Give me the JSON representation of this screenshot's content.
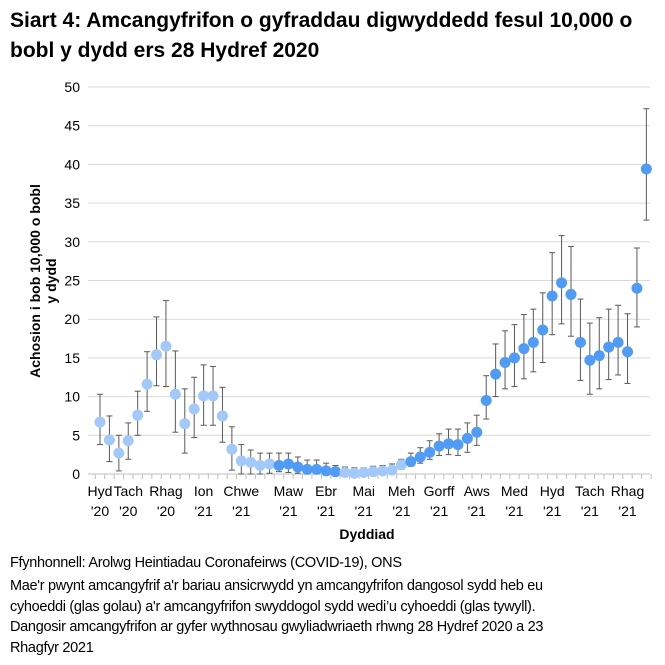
{
  "chart_data": {
    "type": "scatter",
    "title": "Siart 4: Amcangyfrifon o gyfraddau digwyddedd fesul 10,000 o bobl y dydd ers 28 Hydref 2020",
    "xlabel": "Dyddiad",
    "ylabel_lines": [
      "Achosion i bob 10,000 o bobl",
      "y dydd"
    ],
    "ylim": [
      0,
      50
    ],
    "yticks": [
      0,
      5,
      10,
      15,
      20,
      25,
      30,
      35,
      40,
      45,
      50
    ],
    "grid": "horizontal",
    "colors": {
      "unpublished": "#a3c9fa",
      "published": "#4f9bf5",
      "error_bar": "#595959",
      "grid": "#d9d9d9"
    },
    "x_tick_labels": [
      {
        "index": 0,
        "label": [
          "Hyd",
          "'20"
        ]
      },
      {
        "index": 3,
        "label": [
          "Tach",
          "'20"
        ]
      },
      {
        "index": 7,
        "label": [
          "Rhag",
          "'20"
        ]
      },
      {
        "index": 11,
        "label": [
          "Ion",
          "'21"
        ]
      },
      {
        "index": 15,
        "label": [
          "Chwe",
          "'21"
        ]
      },
      {
        "index": 20,
        "label": [
          "Maw",
          "'21"
        ]
      },
      {
        "index": 24,
        "label": [
          "Ebr",
          "'21"
        ]
      },
      {
        "index": 28,
        "label": [
          "Mai",
          "'21"
        ]
      },
      {
        "index": 32,
        "label": [
          "Meh",
          "'21"
        ]
      },
      {
        "index": 36,
        "label": [
          "Gorff",
          "'21"
        ]
      },
      {
        "index": 40,
        "label": [
          "Aws",
          "'21"
        ]
      },
      {
        "index": 44,
        "label": [
          "Med",
          "'21"
        ]
      },
      {
        "index": 48,
        "label": [
          "Hyd",
          "'21"
        ]
      },
      {
        "index": 52,
        "label": [
          "Tach",
          "'21"
        ]
      },
      {
        "index": 56,
        "label": [
          "Rhag",
          "'21"
        ]
      }
    ],
    "values": [
      6.7,
      4.4,
      2.7,
      4.3,
      7.6,
      11.6,
      15.4,
      16.5,
      10.3,
      6.5,
      8.4,
      10.1,
      10.1,
      7.5,
      3.2,
      1.7,
      1.5,
      1.1,
      1.3,
      1.1,
      1.3,
      0.9,
      0.6,
      0.6,
      0.4,
      0.3,
      0.2,
      0.1,
      0.2,
      0.3,
      0.4,
      0.5,
      1.2,
      1.6,
      2.2,
      2.8,
      3.6,
      3.9,
      3.8,
      4.6,
      5.4,
      9.5,
      12.9,
      14.4,
      15.0,
      16.2,
      17.0,
      18.6,
      23.0,
      24.7,
      23.2,
      17.0,
      14.7,
      15.3,
      16.4,
      17.0,
      15.8,
      24.0,
      39.4
    ],
    "lower": [
      3.8,
      1.6,
      0.4,
      1.9,
      5.0,
      8.1,
      11.4,
      11.3,
      5.4,
      2.7,
      4.7,
      6.3,
      6.3,
      4.1,
      0.5,
      0,
      0,
      0,
      0.1,
      0.3,
      0.2,
      0.1,
      0,
      0,
      0,
      0,
      0,
      0,
      0,
      0,
      0,
      0,
      0.6,
      1.0,
      1.4,
      1.9,
      2.4,
      2.5,
      2.4,
      2.8,
      3.7,
      7.1,
      10.0,
      11.0,
      11.3,
      12.3,
      13.2,
      14.4,
      18.0,
      19.4,
      17.8,
      12.1,
      10.3,
      11.0,
      12.2,
      12.8,
      11.7,
      19.0,
      32.8
    ],
    "upper": [
      10.3,
      7.5,
      5.0,
      6.6,
      10.7,
      15.8,
      20.3,
      22.4,
      15.9,
      11.0,
      12.5,
      14.1,
      13.9,
      11.2,
      6.1,
      3.8,
      3.1,
      2.7,
      2.7,
      2.7,
      2.7,
      2.2,
      1.8,
      1.8,
      1.4,
      1.1,
      0.9,
      0.8,
      0.8,
      1.0,
      1.1,
      1.3,
      1.9,
      2.7,
      3.4,
      4.3,
      5.2,
      5.8,
      5.8,
      6.6,
      7.6,
      12.7,
      16.8,
      18.5,
      19.3,
      20.6,
      21.3,
      23.4,
      28.6,
      30.8,
      29.4,
      22.6,
      19.5,
      20.2,
      21.3,
      21.8,
      20.7,
      29.2,
      47.2
    ],
    "published": [
      false,
      false,
      false,
      false,
      false,
      false,
      false,
      false,
      false,
      false,
      false,
      false,
      false,
      false,
      false,
      false,
      false,
      false,
      false,
      true,
      true,
      true,
      true,
      true,
      true,
      true,
      false,
      false,
      false,
      false,
      false,
      false,
      false,
      true,
      true,
      true,
      true,
      true,
      true,
      true,
      true,
      true,
      true,
      true,
      true,
      true,
      true,
      true,
      true,
      true,
      true,
      true,
      true,
      true,
      true,
      true,
      true,
      true,
      true
    ]
  },
  "footer": {
    "source": "Ffynhonnell: Arolwg Heintiadau Coronafeirws (COVID-19), ONS",
    "note_lines": [
      "Mae'r pwynt amcangyfrif a'r bariau ansicrwydd yn amcangyfrifon dangosol sydd heb eu",
      "cyhoeddi (glas golau) a'r amcangyfrifon swyddogol sydd wedi’u cyhoeddi (glas tywyll).",
      "Dangosir amcangyfrifon ar gyfer wythnosau gwyliadwriaeth rhwng 28 Hydref 2020 a 23",
      "Rhagfyr 2021"
    ]
  }
}
